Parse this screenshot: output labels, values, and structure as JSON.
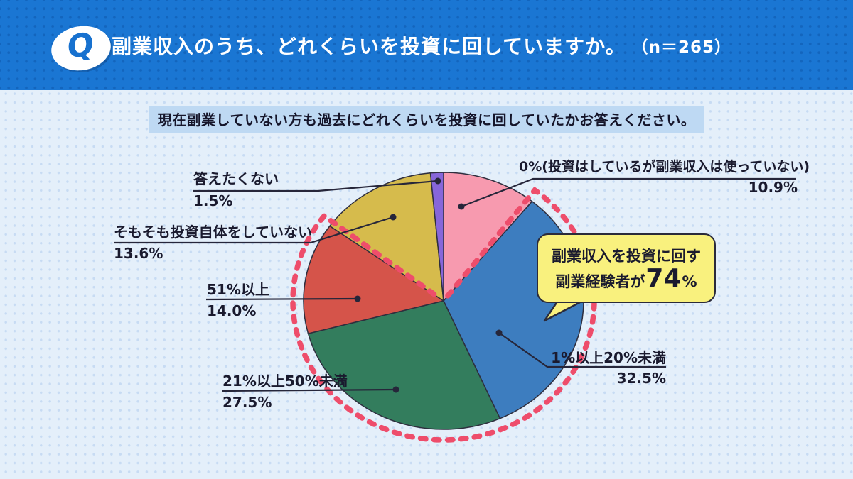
{
  "header": {
    "q_label": "Q",
    "title": "副業収入のうち、どれくらいを投資に回していますか。",
    "sample": "（n＝265）"
  },
  "subtitle": "現在副業していない方も過去にどれくらいを投資に回していたかお答えください。",
  "callout": {
    "line1": "副業収入を投資に回す",
    "line2_prefix": "副業経験者が",
    "line2_value": "74",
    "line2_suffix": "%"
  },
  "colors": {
    "header_bg": "#1A76D3",
    "page_bg": "#E4EFFA",
    "callout_bg": "#F9F17E",
    "subtitle_highlight": "#BED9F3",
    "leader": "#26263A"
  },
  "chart_data": {
    "type": "pie",
    "title": "副業収入のうち、どれくらいを投資に回していますか。",
    "n": 265,
    "start": "top",
    "direction": "clockwise",
    "total": 100,
    "slices": [
      {
        "label": "0%(投資はしているが副業収入は使っていない)",
        "value": 10.9,
        "value_label": "10.9%",
        "color": "#F79AAF"
      },
      {
        "label": "1%以上20%未満",
        "value": 32.5,
        "value_label": "32.5%",
        "color": "#3D7DBF"
      },
      {
        "label": "21%以上50%未満",
        "value": 27.5,
        "value_label": "27.5%",
        "color": "#337D5D"
      },
      {
        "label": "51%以上",
        "value": 14.0,
        "value_label": "14.0%",
        "color": "#D5544A"
      },
      {
        "label": "そもそも投資自体をしていない",
        "value": 13.6,
        "value_label": "13.6%",
        "color": "#D6BB4C"
      },
      {
        "label": "答えたくない",
        "value": 1.5,
        "value_label": "1.5%",
        "color": "#8766DA"
      }
    ],
    "highlight": {
      "text": "副業収入を投資に回す副業経験者が74%",
      "value_pct": 74,
      "covers": [
        "1%以上20%未満",
        "21%以上50%未満",
        "51%以上"
      ],
      "outline_color": "#EE4D6B",
      "style": "red-dashed-outline"
    }
  }
}
